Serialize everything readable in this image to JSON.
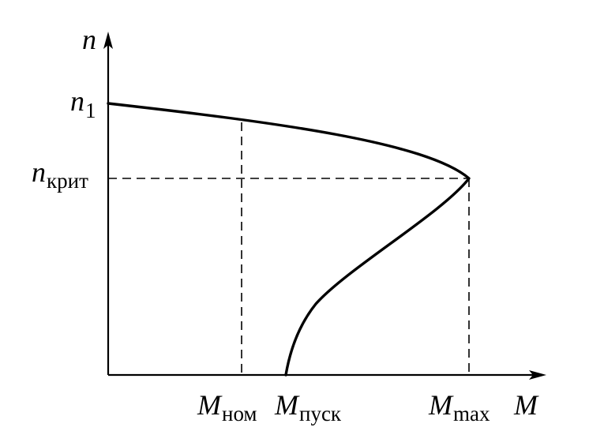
{
  "axes": {
    "y_label": "n",
    "x_label": "M"
  },
  "y_ticks": [
    {
      "main": "n",
      "sub": "1"
    },
    {
      "main": "n",
      "sub": "крит"
    }
  ],
  "x_ticks": [
    {
      "main": "M",
      "sub": "ном"
    },
    {
      "main": "M",
      "sub": "пуск"
    },
    {
      "main": "M",
      "sub": "max"
    }
  ],
  "colors": {
    "line": "#000000",
    "background": "#ffffff"
  }
}
